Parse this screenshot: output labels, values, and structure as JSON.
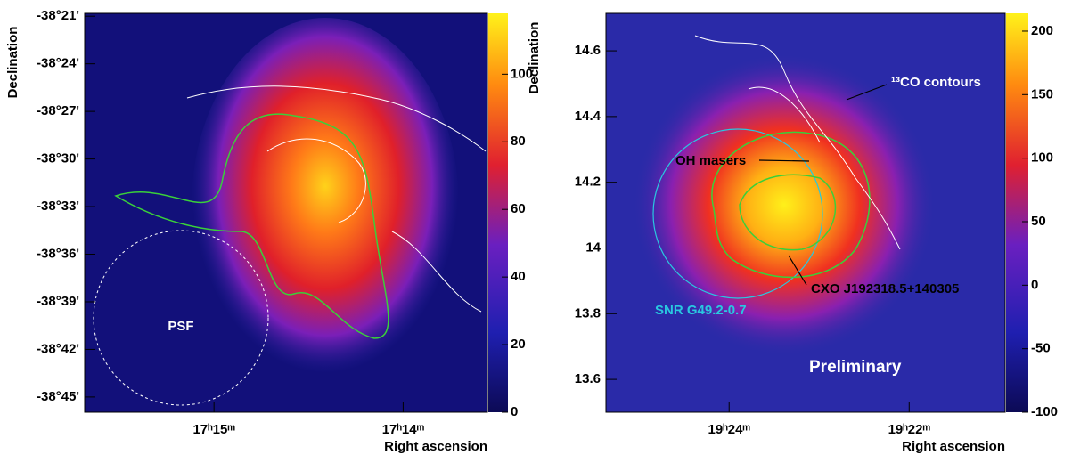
{
  "chart_data": [
    {
      "type": "heatmap",
      "xlabel": "Right ascension",
      "ylabel": "Declination",
      "xlim": [
        17.2614,
        17.2259
      ],
      "ylim": [
        -38.766,
        -38.347
      ],
      "xticks": [
        {
          "value": 17.25,
          "label": "17ʰ15ᵐ"
        },
        {
          "value": 17.23333,
          "label": "17ʰ14ᵐ"
        }
      ],
      "yticks": [
        {
          "value": -38.35,
          "label": "-38°21'"
        },
        {
          "value": -38.4,
          "label": "-38°24'"
        },
        {
          "value": -38.45,
          "label": "-38°27'"
        },
        {
          "value": -38.5,
          "label": "-38°30'"
        },
        {
          "value": -38.55,
          "label": "-38°33'"
        },
        {
          "value": -38.6,
          "label": "-38°36'"
        },
        {
          "value": -38.65,
          "label": "-38°39'"
        },
        {
          "value": -38.7,
          "label": "-38°42'"
        },
        {
          "value": -38.75,
          "label": "-38°45'"
        }
      ],
      "zlim": [
        0,
        118
      ],
      "zticks": [
        0,
        20,
        40,
        60,
        80,
        100
      ],
      "annotations": [
        "PSF"
      ]
    },
    {
      "type": "heatmap",
      "xlabel": "Right ascension",
      "ylabel": "Declination",
      "xlim": [
        19.4228,
        19.3489
      ],
      "ylim": [
        13.5,
        14.714
      ],
      "xticks": [
        {
          "value": 19.4,
          "label": "19ʰ24ᵐ"
        },
        {
          "value": 19.36667,
          "label": "19ʰ22ᵐ"
        }
      ],
      "yticks": [
        13.6,
        13.8,
        14,
        14.2,
        14.4,
        14.6
      ],
      "zlim": [
        -100,
        214
      ],
      "zticks": [
        -100,
        -50,
        0,
        50,
        100,
        150,
        200
      ],
      "annotations": [
        "¹³CO contours",
        "OH masers",
        "CXO J192318.5+140305",
        "SNR G49.2-0.7",
        "Preliminary"
      ]
    }
  ]
}
